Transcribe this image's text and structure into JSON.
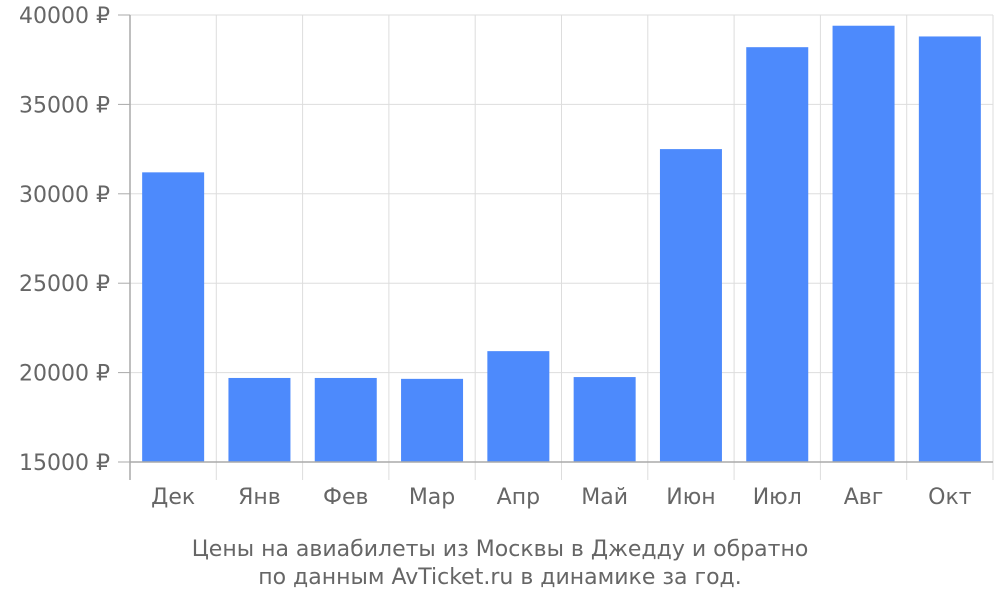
{
  "chart_data": {
    "type": "bar",
    "categories": [
      "Дек",
      "Янв",
      "Фев",
      "Мар",
      "Апр",
      "Май",
      "Июн",
      "Июл",
      "Авг",
      "Окт"
    ],
    "values": [
      31200,
      19700,
      19700,
      19650,
      21200,
      19750,
      32500,
      38200,
      39400,
      38800
    ],
    "ylim": [
      15000,
      40000
    ],
    "y_ticks": [
      "15000 ₽",
      "20000 ₽",
      "25000 ₽",
      "30000 ₽",
      "35000 ₽",
      "40000 ₽"
    ],
    "y_tick_values": [
      15000,
      20000,
      25000,
      30000,
      35000,
      40000
    ],
    "caption_lines": [
      "Цены на авиабилеты из Москвы в Джедду и обратно",
      "по данным AvTicket.ru в динамике за год."
    ],
    "grid": true,
    "bar_color": "#4d8afc",
    "grid_color": "#dddddd",
    "axis_color": "#aaaaaa"
  }
}
